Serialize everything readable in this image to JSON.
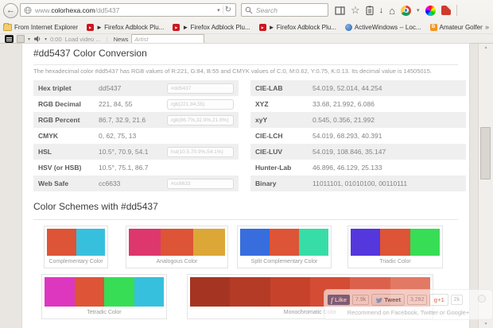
{
  "browser": {
    "url": {
      "www": "www.",
      "domain": "colorhexa.com",
      "path": "/dd5437"
    },
    "search_placeholder": "Search",
    "bookmarks": [
      {
        "label": "From Internet Explorer",
        "icon": "folder"
      },
      {
        "label": "► Firefox Adblock Plu...",
        "icon": "youtube"
      },
      {
        "label": "► Firefox Adblock Plu...",
        "icon": "youtube"
      },
      {
        "label": "► Firefox Adblock Plu...",
        "icon": "youtube"
      },
      {
        "label": "ActiveWindows -- Loc...",
        "icon": "globe"
      },
      {
        "label": "Amateur Golfer",
        "icon": "blogger"
      }
    ],
    "toolbar2": {
      "time": "0:00",
      "load_video": "Load video ...",
      "news": "News",
      "artist_placeholder": "Artist"
    }
  },
  "icons": {
    "back": "←",
    "dropdown": "▾",
    "reload": "↻",
    "star": "☆",
    "download": "↓",
    "home": "⌂",
    "overflow": "»",
    "play": "▶",
    "separator": "|",
    "scroll_up": "▲",
    "scroll_down": "▼",
    "facebook": "f",
    "blogger": "B"
  },
  "page": {
    "title": "#dd5437 Color Conversion",
    "intro": "The hexadecimal color #dd5437 has RGB values of R:221, G:84, B:55 and CMYK values of C:0, M:0.62, Y:0.75, K:0.13. Its decimal value is 14505015.",
    "conversion_left": [
      {
        "label": "Hex triplet",
        "value": "dd5437",
        "input": "#dd5437"
      },
      {
        "label": "RGB Decimal",
        "value": "221, 84, 55",
        "input": "rgb(221,84,55)"
      },
      {
        "label": "RGB Percent",
        "value": "86.7, 32.9, 21.6",
        "input": "rgb(86.7%,32.9%,21.6%)"
      },
      {
        "label": "CMYK",
        "value": "0, 62, 75, 13",
        "input": ""
      },
      {
        "label": "HSL",
        "value": "10.5°, 70.9, 54.1",
        "input": "hsl(10.5,70.9%,54.1%)"
      },
      {
        "label": "HSV (or HSB)",
        "value": "10.5°, 75.1, 86.7",
        "input": ""
      },
      {
        "label": "Web Safe",
        "value": "cc6633",
        "input": "#cc6633"
      }
    ],
    "conversion_right": [
      {
        "label": "CIE-LAB",
        "value": "54.019, 52.014, 44.254"
      },
      {
        "label": "XYZ",
        "value": "33.68, 21.992, 6.086"
      },
      {
        "label": "xyY",
        "value": "0.545, 0.356, 21.992"
      },
      {
        "label": "CIE-LCH",
        "value": "54.019, 68.293, 40.391"
      },
      {
        "label": "CIE-LUV",
        "value": "54.019, 108.846, 35.147"
      },
      {
        "label": "Hunter-Lab",
        "value": "46.896, 46.129, 25.133"
      },
      {
        "label": "Binary",
        "value": "11011101, 01010100, 00110111"
      }
    ],
    "schemes_title": "Color Schemes with #dd5437",
    "schemes": [
      {
        "label": "Complementary Color",
        "colors": [
          "#dd5437",
          "#37c0dd"
        ]
      },
      {
        "label": "Analogous Color",
        "colors": [
          "#dd376d",
          "#dd5437",
          "#dda737"
        ]
      },
      {
        "label": "Split Complementary Color",
        "colors": [
          "#376ddd",
          "#dd5437",
          "#37dda7"
        ]
      },
      {
        "label": "Triadic Color",
        "colors": [
          "#5437dd",
          "#dd5437",
          "#37dd54"
        ]
      },
      {
        "label": "Tetradic Color",
        "colors": [
          "#dd37c0",
          "#dd5437",
          "#37dd54",
          "#37c0dd"
        ]
      },
      {
        "label": "Monochromatic Color",
        "colors": [
          "#a53522",
          "#b43b26",
          "#c6422a",
          "#d44c33",
          "#dc614c",
          "#e27964"
        ]
      }
    ],
    "social": {
      "like_label": "Like",
      "like_count": "7.9k",
      "tweet_label": "Tweet",
      "tweet_count": "3,282",
      "gplus_label": "g+1",
      "gplus_count": "2k",
      "recommend": "Recommend on Facebook, Twitter or Google+"
    }
  }
}
